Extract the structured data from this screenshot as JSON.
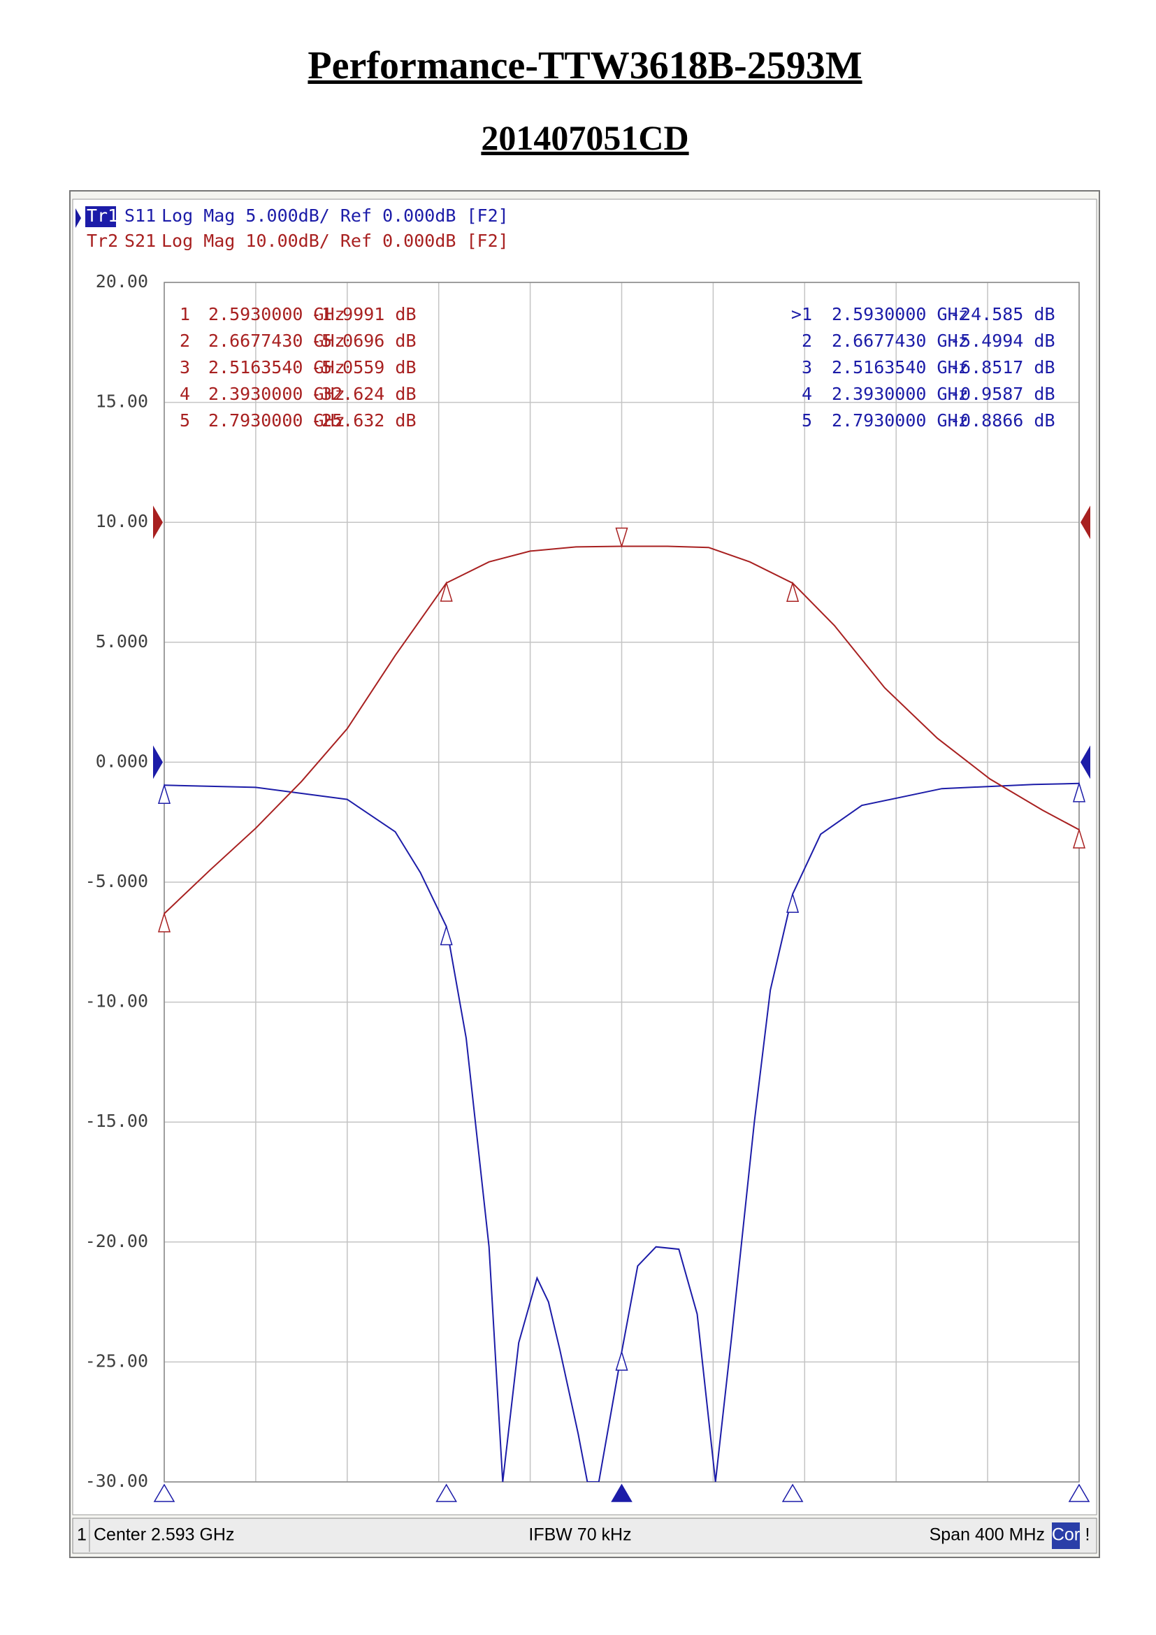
{
  "chart_data": {
    "type": "line",
    "title": "Performance-TTW3618B-2593M",
    "subtitle": "201407051CD",
    "xlim": [
      2.393,
      2.793
    ],
    "xticks": [
      2.393,
      2.433,
      2.473,
      2.513,
      2.553,
      2.593,
      2.633,
      2.673,
      2.713,
      2.753,
      2.793
    ],
    "ylim": [
      -30,
      20
    ],
    "yticks": [
      {
        "value": 20,
        "label": "20.00"
      },
      {
        "value": 15,
        "label": "15.00"
      },
      {
        "value": 10,
        "label": "10.00"
      },
      {
        "value": 5,
        "label": "5.000"
      },
      {
        "value": 0,
        "label": "0.000"
      },
      {
        "value": -5,
        "label": "-5.000"
      },
      {
        "value": -10,
        "label": "-10.00"
      },
      {
        "value": -15,
        "label": "-15.00"
      },
      {
        "value": -20,
        "label": "-20.00"
      },
      {
        "value": -25,
        "label": "-25.00"
      },
      {
        "value": -30,
        "label": "-30.00"
      }
    ],
    "y2lim": [
      -80,
      20
    ],
    "grid": true,
    "footer": {
      "channel": "1",
      "center": "Center 2.593 GHz",
      "ifbw": "IFBW 70 kHz",
      "span": "Span 400 MHz",
      "correction": "Cor",
      "alert": "!"
    },
    "series": [
      {
        "trace": "Tr1",
        "name": "S11",
        "format": "Log Mag 5.000dB/ Ref 0.000dB [F2]",
        "color": "#1c1ca8",
        "axis": "y",
        "ref": 0,
        "x": [
          2.393,
          2.433,
          2.473,
          2.494,
          2.505,
          2.516354,
          2.525,
          2.535,
          2.541,
          2.548,
          2.556,
          2.561,
          2.566,
          2.574,
          2.578,
          2.583,
          2.593,
          2.6,
          2.608,
          2.618,
          2.626,
          2.634,
          2.641,
          2.651,
          2.658,
          2.667743,
          2.68,
          2.698,
          2.733,
          2.773,
          2.793
        ],
        "values": [
          -0.9587,
          -1.05,
          -1.55,
          -2.9,
          -4.6,
          -6.8517,
          -11.5,
          -20.2,
          -30,
          -24.2,
          -21.5,
          -22.5,
          -24.5,
          -28,
          -30,
          -30,
          -24.585,
          -21,
          -20.2,
          -20.3,
          -23,
          -30,
          -24,
          -15,
          -9.5,
          -5.4994,
          -3.0,
          -1.8,
          -1.1,
          -0.93,
          -0.8866
        ],
        "markers": [
          {
            "label": ">1",
            "x": {
              "value": 2.593,
              "label": "2.5930000 GHz"
            },
            "y": {
              "value": -24.585,
              "label": "-24.585 dB"
            }
          },
          {
            "label": "2",
            "x": {
              "value": 2.667743,
              "label": "2.6677430 GHz"
            },
            "y": {
              "value": -5.4994,
              "label": "-5.4994 dB"
            }
          },
          {
            "label": "3",
            "x": {
              "value": 2.516354,
              "label": "2.5163540 GHz"
            },
            "y": {
              "value": -6.8517,
              "label": "-6.8517 dB"
            }
          },
          {
            "label": "4",
            "x": {
              "value": 2.393,
              "label": "2.3930000 GHz"
            },
            "y": {
              "value": -0.9587,
              "label": "-0.9587 dB"
            }
          },
          {
            "label": "5",
            "x": {
              "value": 2.793,
              "label": "2.7930000 GHz"
            },
            "y": {
              "value": -0.8866,
              "label": "-0.8866 dB"
            }
          }
        ]
      },
      {
        "trace": "Tr2",
        "name": "S21",
        "format": "Log Mag 10.00dB/ Ref 0.000dB [F2]",
        "color": "#a82020",
        "axis": "y2",
        "ref": 0,
        "x": [
          2.393,
          2.413,
          2.433,
          2.453,
          2.473,
          2.494,
          2.516354,
          2.535,
          2.553,
          2.573,
          2.593,
          2.613,
          2.631,
          2.649,
          2.667743,
          2.686,
          2.708,
          2.731,
          2.754,
          2.777,
          2.793
        ],
        "values": [
          -32.624,
          -29.0,
          -25.5,
          -21.6,
          -17.2,
          -11.1,
          -5.0559,
          -3.3,
          -2.4,
          -2.05,
          -1.9991,
          -2.0,
          -2.1,
          -3.3,
          -5.0696,
          -8.6,
          -13.8,
          -18.0,
          -21.4,
          -24.0,
          -25.632
        ],
        "markers": [
          {
            "label": "1",
            "x": {
              "value": 2.593,
              "label": "2.5930000 GHz"
            },
            "y": {
              "value": -1.9991,
              "label": "-1.9991 dB"
            }
          },
          {
            "label": "2",
            "x": {
              "value": 2.667743,
              "label": "2.6677430 GHz"
            },
            "y": {
              "value": -5.0696,
              "label": "-5.0696 dB"
            }
          },
          {
            "label": "3",
            "x": {
              "value": 2.516354,
              "label": "2.5163540 GHz"
            },
            "y": {
              "value": -5.0559,
              "label": "-5.0559 dB"
            }
          },
          {
            "label": "4",
            "x": {
              "value": 2.393,
              "label": "2.3930000 GHz"
            },
            "y": {
              "value": -32.624,
              "label": "-32.624 dB"
            }
          },
          {
            "label": "5",
            "x": {
              "value": 2.793,
              "label": "2.7930000 GHz"
            },
            "y": {
              "value": -25.632,
              "label": "-25.632 dB"
            }
          }
        ]
      }
    ]
  }
}
